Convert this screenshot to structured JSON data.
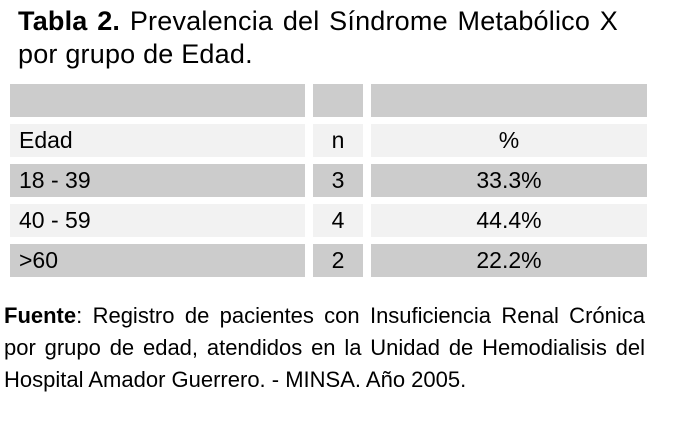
{
  "caption": {
    "label": "Tabla 2.",
    "text": " Prevalencia del Síndrome Metabólico X por grupo de Edad."
  },
  "table": {
    "headers": {
      "edad": "Edad",
      "n": "n",
      "pct": "%"
    },
    "rows": [
      {
        "edad": "18 - 39",
        "n": "3",
        "pct": "33.3%"
      },
      {
        "edad": "40 - 59",
        "n": "4",
        "pct": "44.4%"
      },
      {
        "edad": ">60",
        "n": "2",
        "pct": "22.2%"
      }
    ]
  },
  "source": {
    "label": "Fuente",
    "text": ": Registro de pacientes con Insuficiencia Renal Crónica por grupo de edad, atendidos en la Unidad de Hemodialisis del Hospital Amador Guerrero. - MINSA. Año 2005."
  },
  "colors": {
    "row_dark": "#cccccc",
    "row_light": "#f2f2f2",
    "background": "#ffffff",
    "text": "#000000"
  }
}
